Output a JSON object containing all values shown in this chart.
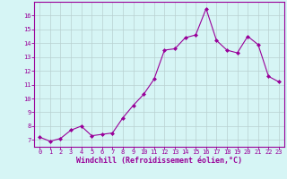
{
  "x": [
    0,
    1,
    2,
    3,
    4,
    5,
    6,
    7,
    8,
    9,
    10,
    11,
    12,
    13,
    14,
    15,
    16,
    17,
    18,
    19,
    20,
    21,
    22,
    23
  ],
  "y": [
    7.2,
    6.9,
    7.1,
    7.7,
    8.0,
    7.3,
    7.4,
    7.5,
    8.6,
    9.5,
    10.3,
    11.4,
    13.5,
    13.6,
    14.4,
    14.6,
    16.5,
    14.2,
    13.5,
    13.3,
    14.5,
    13.9,
    11.6,
    11.2
  ],
  "xlabel": "Windchill (Refroidissement éolien,°C)",
  "ylim": [
    6.5,
    17.0
  ],
  "xlim": [
    -0.5,
    23.5
  ],
  "yticks": [
    7,
    8,
    9,
    10,
    11,
    12,
    13,
    14,
    15,
    16
  ],
  "xticks": [
    0,
    1,
    2,
    3,
    4,
    5,
    6,
    7,
    8,
    9,
    10,
    11,
    12,
    13,
    14,
    15,
    16,
    17,
    18,
    19,
    20,
    21,
    22,
    23
  ],
  "line_color": "#990099",
  "marker": "D",
  "marker_size": 2,
  "bg_color": "#d6f5f5",
  "grid_color": "#b8d0d0",
  "xlabel_color": "#990099",
  "tick_color": "#990099",
  "spine_color": "#990099",
  "tick_fontsize": 5.0,
  "xlabel_fontsize": 6.0
}
